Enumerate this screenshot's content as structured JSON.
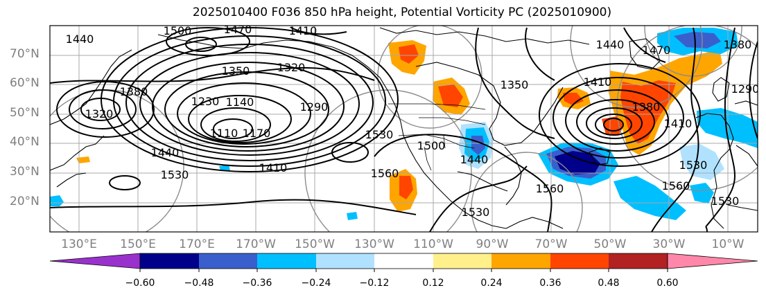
{
  "title": "2025010400 F036 850 hPa height, Potential Vorticity PC (2025010900)",
  "lat_labels": [
    "70°N",
    "60°N",
    "50°N",
    "40°N",
    "30°N",
    "20°N"
  ],
  "lon_labels": [
    "130°E",
    "150°E",
    "170°E",
    "170°W",
    "150°W",
    "130°W",
    "110°W",
    "90°W",
    "70°W",
    "50°W",
    "30°W",
    "10°W"
  ],
  "colorbar": {
    "colors": [
      "#9932cc",
      "#00008b",
      "#3a5fcd",
      "#00bfff",
      "#b0e2ff",
      "#ffffff",
      "#fff08c",
      "#ffa500",
      "#ff4500",
      "#b22222",
      "#ff88aa"
    ],
    "tick_labels": [
      "−0.60",
      "−0.48",
      "−0.36",
      "−0.24",
      "−0.12",
      "0.12",
      "0.24",
      "0.36",
      "0.48",
      "0.60"
    ]
  },
  "contour_labels": [
    "1500",
    "1470",
    "1410",
    "1440",
    "1380",
    "1320",
    "1350",
    "1320",
    "1230",
    "1140",
    "1110",
    "1170",
    "1290",
    "1440",
    "1530",
    "1410",
    "1530",
    "1560",
    "1500",
    "1440",
    "1530",
    "1350",
    "1410",
    "1440",
    "1470",
    "1380",
    "1290",
    "1380",
    "1410",
    "1530",
    "1560",
    "1530",
    "1560"
  ]
}
